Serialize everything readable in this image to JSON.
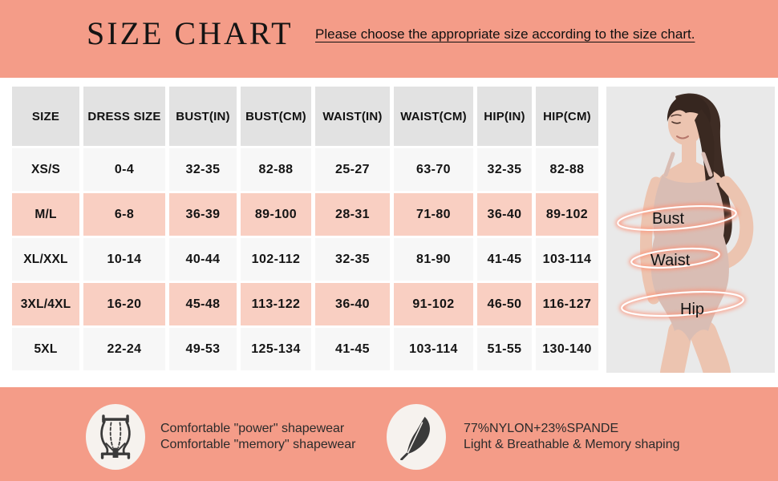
{
  "header": {
    "title": "SIZE CHART",
    "subtitle": "Please choose the appropriate size according to the size chart."
  },
  "size_table": {
    "columns": [
      "SIZE",
      "DRESS SIZE",
      "BUST(IN)",
      "BUST(CM)",
      "WAIST(IN)",
      "WAIST(CM)",
      "HIP(IN)",
      "HIP(CM)"
    ],
    "rows": [
      {
        "size": "XS/S",
        "highlight": false,
        "values": [
          "0-4",
          "32-35",
          "82-88",
          "25-27",
          "63-70",
          "32-35",
          "82-88"
        ]
      },
      {
        "size": "M/L",
        "highlight": true,
        "values": [
          "6-8",
          "36-39",
          "89-100",
          "28-31",
          "71-80",
          "36-40",
          "89-102"
        ]
      },
      {
        "size": "XL/XXL",
        "highlight": false,
        "values": [
          "10-14",
          "40-44",
          "102-112",
          "32-35",
          "81-90",
          "41-45",
          "103-114"
        ]
      },
      {
        "size": "3XL/4XL",
        "highlight": true,
        "values": [
          "16-20",
          "45-48",
          "113-122",
          "36-40",
          "91-102",
          "46-50",
          "116-127"
        ]
      },
      {
        "size": "5XL",
        "highlight": false,
        "values": [
          "22-24",
          "49-53",
          "125-134",
          "41-45",
          "103-114",
          "51-55",
          "130-140"
        ]
      }
    ]
  },
  "figure": {
    "labels": [
      "Bust",
      "Waist",
      "Hip"
    ]
  },
  "features": [
    {
      "icon": "shapewear-garment-icon",
      "line1": "Comfortable \"power\" shapewear",
      "line2": "Comfortable \"memory\" shapewear"
    },
    {
      "icon": "feather-icon",
      "line1": "77%NYLON+23%SPANDE",
      "line2": "Light & Breathable & Memory shaping"
    }
  ],
  "colors": {
    "background": "#F49C88",
    "row_highlight": "#F9CFC2",
    "row_plain": "#F7F7F7",
    "header_cell": "#E2E2E2",
    "ring": "#FF8E72"
  }
}
